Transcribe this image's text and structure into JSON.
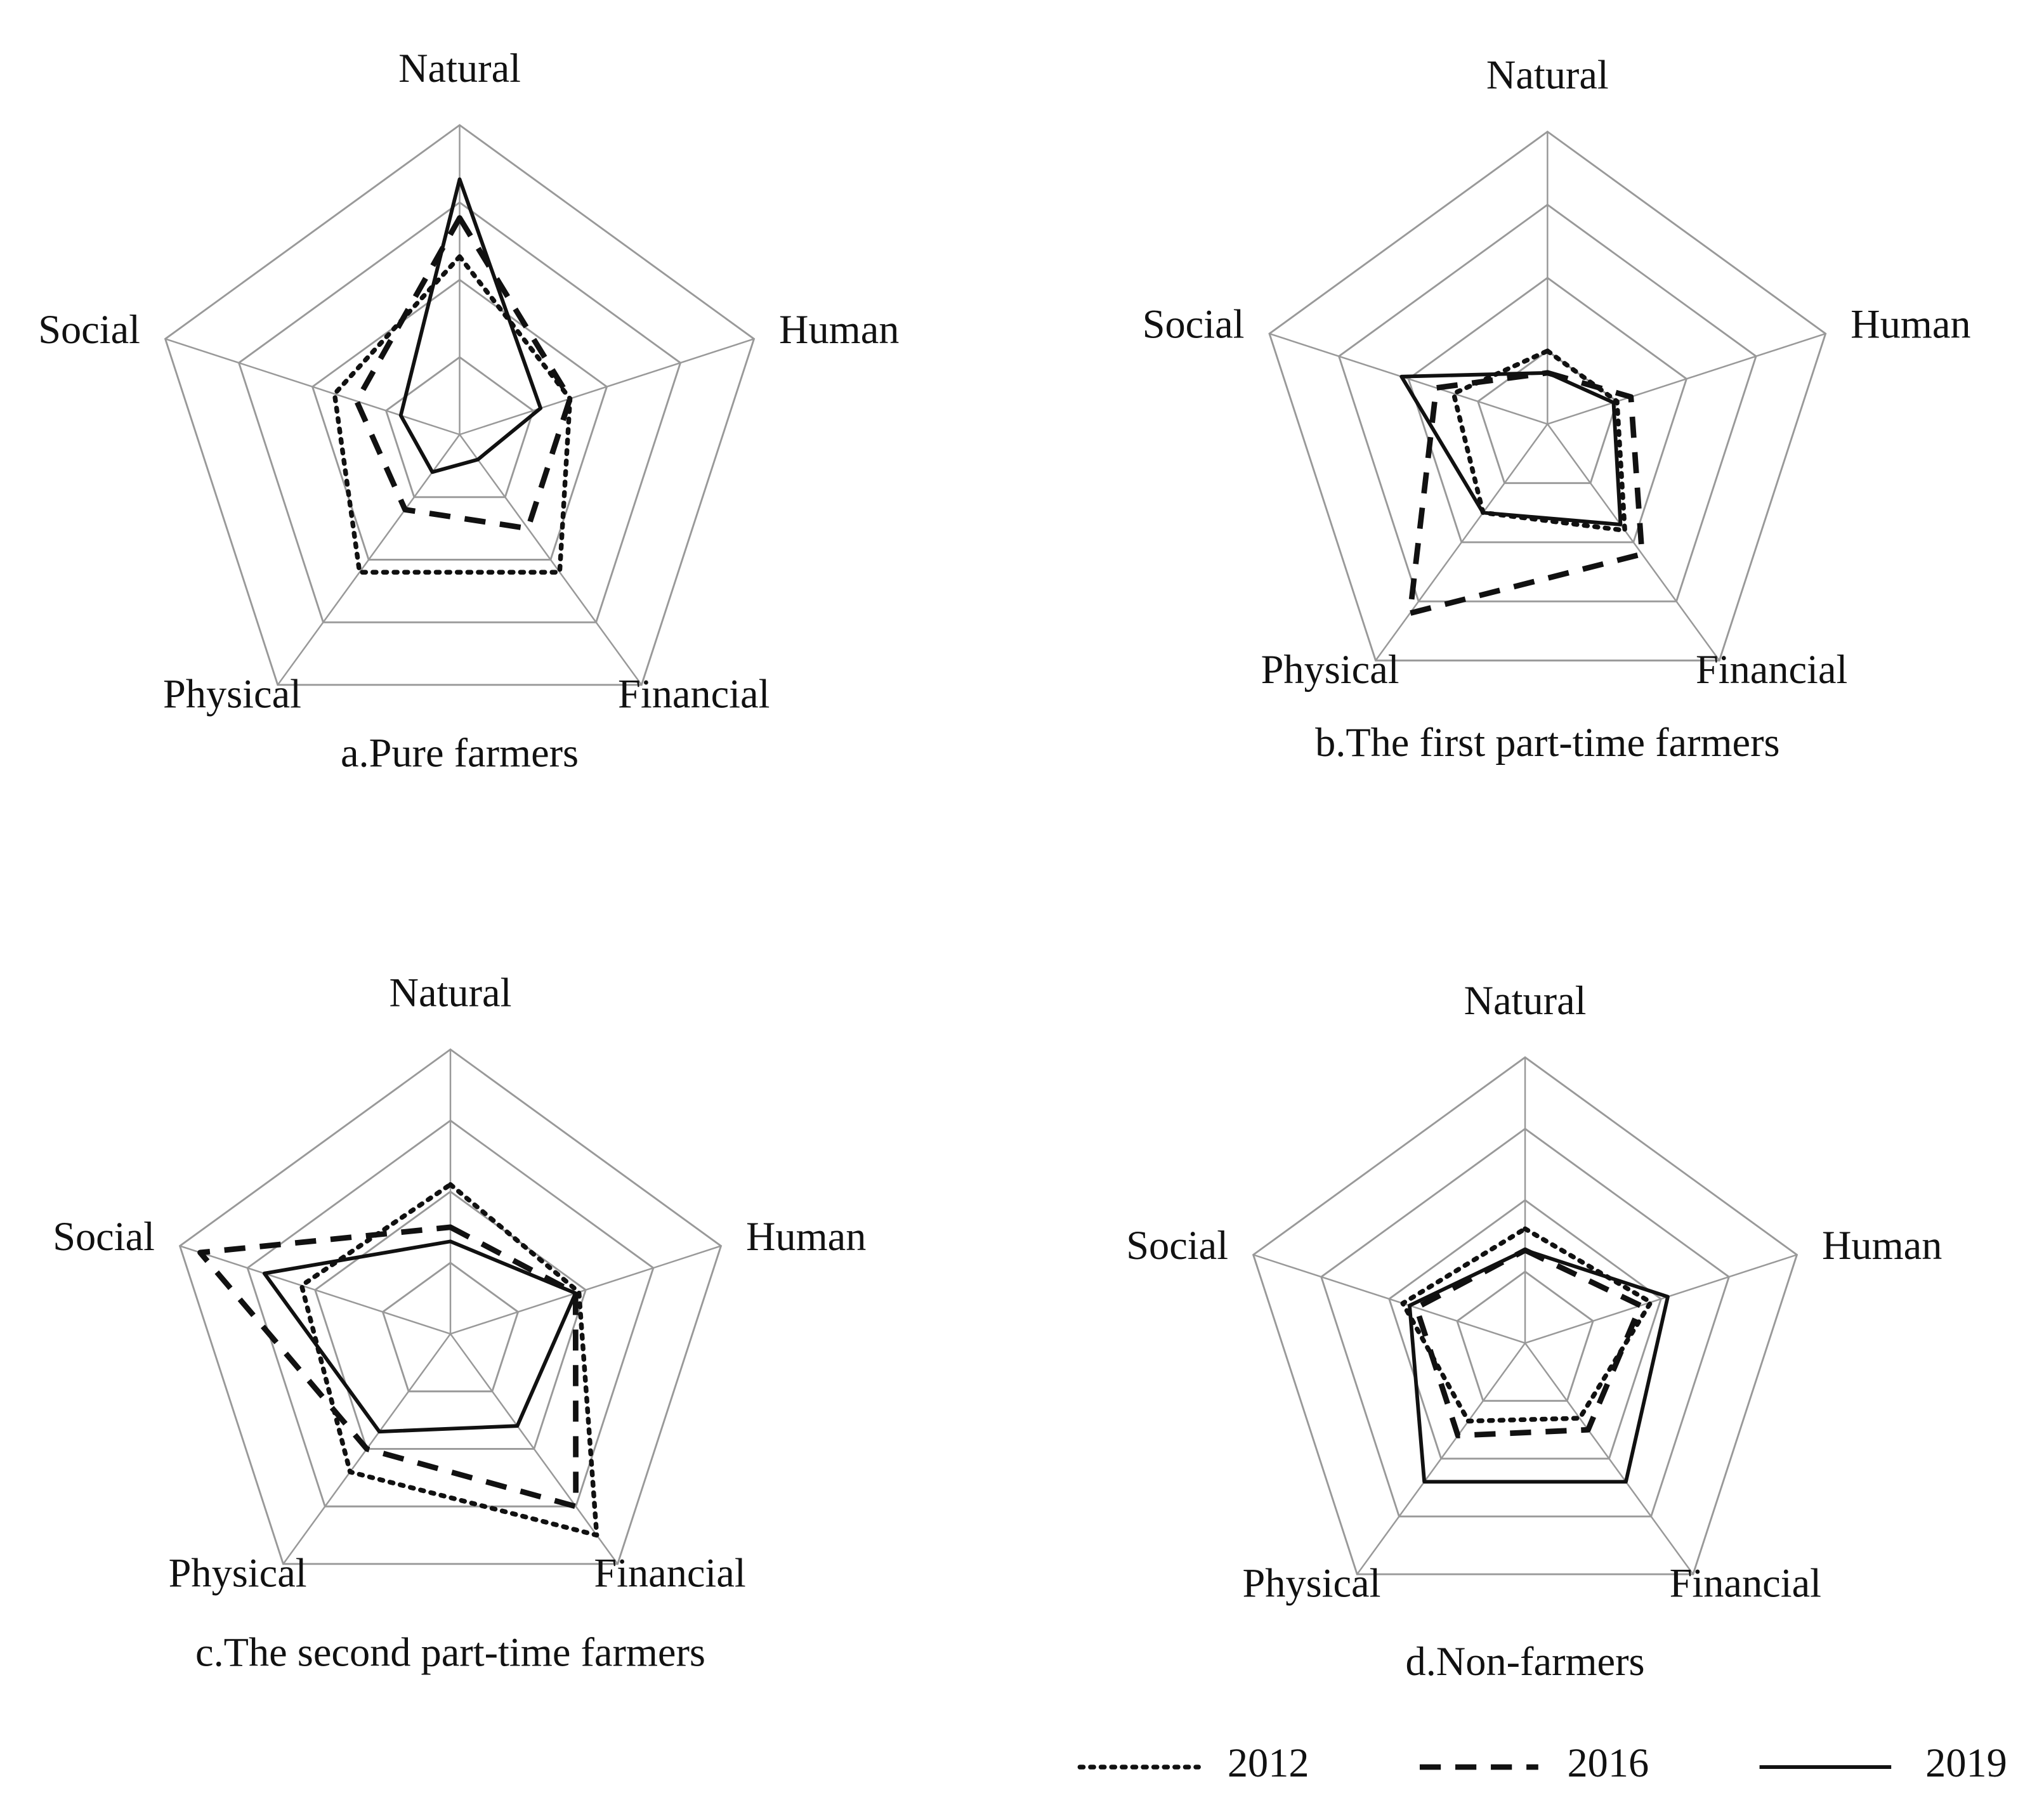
{
  "chart_data": [
    {
      "type": "radar",
      "title": "a.Pure farmers",
      "categories": [
        "Natural",
        "Human",
        "Financial",
        "Physical",
        "Social"
      ],
      "ylim": [
        0,
        4
      ],
      "yticks": [
        1,
        2,
        3,
        4
      ],
      "legend": "bottom-right",
      "series": [
        {
          "name": "2012",
          "color": "#111111",
          "dash": "dotted",
          "values": [
            2.3,
            1.5,
            2.2,
            2.2,
            1.7
          ]
        },
        {
          "name": "2016",
          "color": "#111111",
          "dash": "dashed",
          "values": [
            2.8,
            1.5,
            1.5,
            1.2,
            1.4
          ]
        },
        {
          "name": "2019",
          "color": "#111111",
          "dash": "solid",
          "values": [
            3.3,
            1.1,
            0.4,
            0.6,
            0.8
          ]
        }
      ]
    },
    {
      "type": "radar",
      "title": "b.The first part-time farmers",
      "categories": [
        "Natural",
        "Human",
        "Financial",
        "Physical",
        "Social"
      ],
      "ylim": [
        0,
        4
      ],
      "yticks": [
        1,
        2,
        3,
        4
      ],
      "series": [
        {
          "color": "#111111",
          "dash": "dotted",
          "values": [
            1.0,
            1.0,
            1.8,
            1.5,
            1.35
          ]
        },
        {
          "color": "#111111",
          "dash": "dashed",
          "values": [
            0.7,
            1.2,
            2.2,
            3.2,
            1.6
          ]
        },
        {
          "color": "#111111",
          "dash": "solid",
          "values": [
            0.7,
            0.95,
            1.7,
            1.5,
            2.1
          ]
        }
      ]
    },
    {
      "type": "radar",
      "title": "c.The second part-time farmers",
      "categories": [
        "Natural",
        "Human",
        "Financial",
        "Physical",
        "Social"
      ],
      "ylim": [
        0,
        4
      ],
      "yticks": [
        1,
        2,
        3,
        4
      ],
      "series": [
        {
          "color": "#111111",
          "dash": "dotted",
          "values": [
            2.1,
            1.9,
            3.5,
            2.4,
            2.2
          ]
        },
        {
          "color": "#111111",
          "dash": "dashed",
          "values": [
            1.5,
            1.85,
            3.0,
            2.0,
            3.7
          ]
        },
        {
          "color": "#111111",
          "dash": "solid",
          "values": [
            1.3,
            1.85,
            1.6,
            1.7,
            2.75
          ]
        }
      ]
    },
    {
      "type": "radar",
      "title": "d.Non-farmers",
      "categories": [
        "Natural",
        "Human",
        "Financial",
        "Physical",
        "Social"
      ],
      "ylim": [
        0,
        4
      ],
      "yticks": [
        1,
        2,
        3,
        4
      ],
      "series": [
        {
          "color": "#111111",
          "dash": "dotted",
          "values": [
            1.6,
            1.85,
            1.3,
            1.35,
            1.8
          ]
        },
        {
          "color": "#111111",
          "dash": "dashed",
          "values": [
            1.3,
            1.7,
            1.5,
            1.6,
            1.6
          ]
        },
        {
          "color": "#111111",
          "dash": "solid",
          "values": [
            1.3,
            2.1,
            2.4,
            2.4,
            1.7
          ]
        }
      ]
    }
  ]
}
